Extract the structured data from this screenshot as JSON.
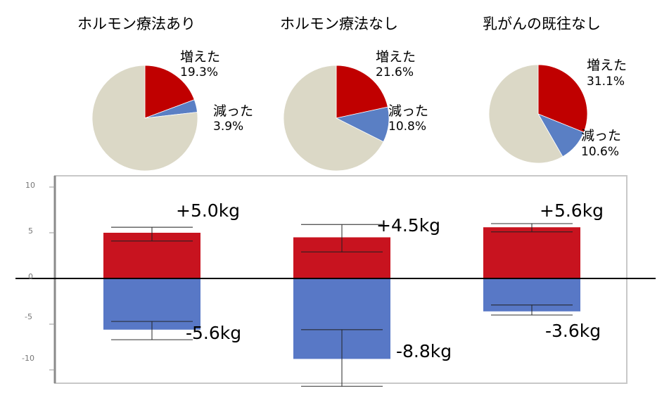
{
  "chart_data": [
    {
      "type": "pie",
      "title": "ホルモン療法あり",
      "slices": [
        {
          "label": "増えた",
          "value": 19.3,
          "value_label": "19.3%",
          "color": "#c00000"
        },
        {
          "label": "減った",
          "value": 3.9,
          "value_label": "3.9%",
          "color": "#5a7fc4"
        },
        {
          "label": "",
          "value": 76.8,
          "color": "#dbd8c6"
        }
      ]
    },
    {
      "type": "pie",
      "title": "ホルモン療法なし",
      "slices": [
        {
          "label": "増えた",
          "value": 21.6,
          "value_label": "21.6%",
          "color": "#c00000"
        },
        {
          "label": "減った",
          "value": 10.8,
          "value_label": "10.8%",
          "color": "#5a7fc4"
        },
        {
          "label": "",
          "value": 67.6,
          "color": "#dbd8c6"
        }
      ]
    },
    {
      "type": "pie",
      "title": "乳がんの既往なし",
      "slices": [
        {
          "label": "増えた",
          "value": 31.1,
          "value_label": "31.1%",
          "color": "#c00000"
        },
        {
          "label": "減った",
          "value": 10.6,
          "value_label": "10.6%",
          "color": "#5a7fc4"
        },
        {
          "label": "",
          "value": 58.3,
          "color": "#dbd8c6"
        }
      ]
    },
    {
      "type": "bar",
      "categories": [
        "ホルモン療法あり",
        "ホルモン療法なし",
        "乳がんの既往なし"
      ],
      "series": [
        {
          "values": [
            5.0,
            4.5,
            5.6
          ],
          "labels": [
            "+5.0kg",
            "+4.5kg",
            "+5.6kg"
          ],
          "error_low": [
            4.1,
            2.9,
            5.1
          ],
          "error_high": [
            5.6,
            5.9,
            6.0
          ],
          "color": "#c8131f"
        },
        {
          "values": [
            -5.6,
            -8.8,
            -3.6
          ],
          "labels": [
            "-5.6kg",
            "-8.8kg",
            "-3.6kg"
          ],
          "error_low": [
            -6.7,
            -11.8,
            -4.0
          ],
          "error_high": [
            -4.7,
            -5.6,
            -2.9
          ],
          "color": "#5878c6"
        }
      ],
      "yticks": [
        "10",
        "5",
        "0",
        "-5",
        "-10"
      ],
      "ylim": [
        -12,
        10.5
      ],
      "grid": false
    }
  ]
}
